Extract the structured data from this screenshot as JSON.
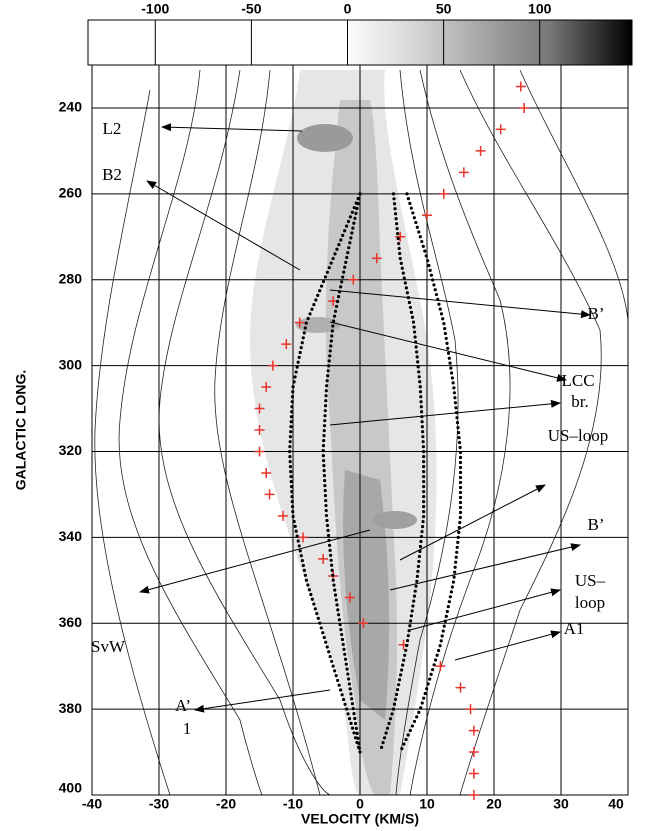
{
  "chart_data": {
    "type": "scatter",
    "xlabel": "VELOCITY (KM/S)",
    "ylabel": "GALACTIC LONG.",
    "xlim": [
      -40,
      40
    ],
    "xticks": [
      -40,
      -30,
      -20,
      -10,
      0,
      10,
      20,
      30,
      40
    ],
    "ylim": [
      230,
      400
    ],
    "yticks": [
      240,
      260,
      280,
      300,
      320,
      340,
      360,
      380,
      400
    ],
    "y_inverted": true,
    "grid": true,
    "colorbar": {
      "lim": [
        -135,
        148
      ],
      "ticks": [
        -100,
        -50,
        0,
        50,
        100
      ]
    },
    "series": [
      {
        "color": "#e8342a",
        "marker": "cross",
        "x": [
          24,
          24.5,
          21,
          18,
          15.5,
          12.5,
          10,
          6,
          2.5,
          -1,
          -4,
          -9,
          -11,
          -13,
          -14,
          -15,
          -15,
          -15,
          -14,
          -13.5,
          -11.5,
          -8.5,
          -5.5,
          -4,
          -1.5,
          0.5,
          6.5,
          12,
          15,
          16.5,
          17,
          17,
          17,
          17
        ],
        "values": [
          235,
          240,
          245,
          250,
          255,
          260,
          265,
          270,
          275,
          280,
          285,
          290,
          295,
          300,
          305,
          310,
          315,
          320,
          325,
          330,
          335,
          340,
          345,
          349,
          354,
          360,
          365,
          370,
          375,
          380,
          385,
          390,
          395,
          400
        ]
      },
      {
        "color": "#000000",
        "marker": "dots",
        "x": [
          0,
          -4,
          -8,
          -10,
          -10.5,
          -10,
          -8,
          -5,
          -2,
          0
        ],
        "values": [
          260,
          275,
          290,
          305,
          320,
          335,
          350,
          365,
          380,
          390
        ]
      },
      {
        "color": "#000000",
        "marker": "dots",
        "x": [
          0,
          -2,
          -4,
          -5,
          -5.5,
          -5,
          -4,
          -2.5,
          -1,
          0
        ],
        "values": [
          260,
          275,
          290,
          305,
          320,
          335,
          350,
          365,
          380,
          390
        ]
      },
      {
        "color": "#000000",
        "marker": "dots",
        "x": [
          5,
          6,
          8,
          9,
          9.5,
          9.5,
          8.5,
          7,
          5,
          3
        ],
        "values": [
          260,
          275,
          290,
          305,
          320,
          335,
          350,
          365,
          380,
          390
        ]
      },
      {
        "color": "#000000",
        "marker": "dots",
        "x": [
          7,
          10,
          12.5,
          14,
          15,
          15,
          14,
          12,
          9,
          6
        ],
        "values": [
          260,
          275,
          290,
          305,
          320,
          335,
          350,
          365,
          380,
          390
        ]
      }
    ],
    "annotations": [
      "L2",
      "B2",
      "B’",
      "LCC",
      "br.",
      "US–loop",
      "B’",
      "US–",
      "loop",
      "SvW",
      "A1",
      "A’",
      "1"
    ]
  }
}
